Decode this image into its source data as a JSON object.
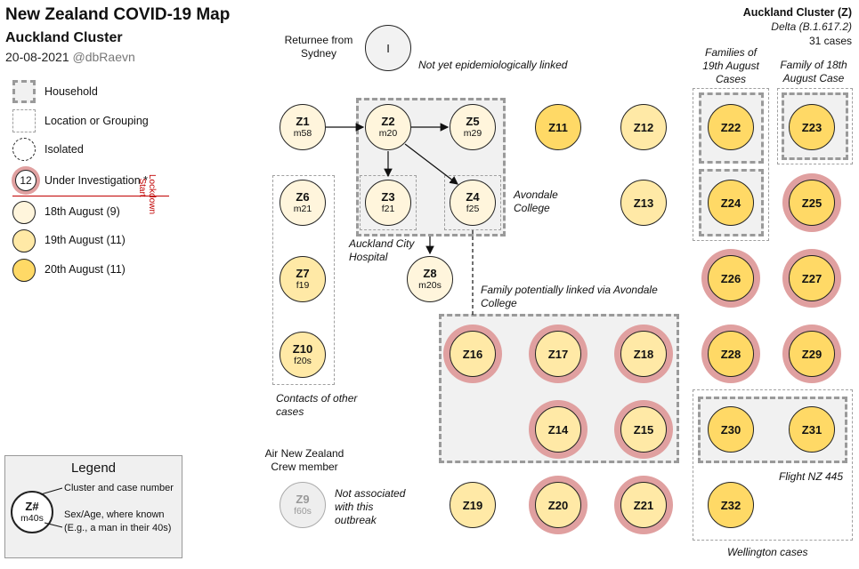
{
  "title": "New Zealand COVID-19 Map",
  "subtitle": "Auckland Cluster",
  "date": "20-08-2021",
  "handle": "@dbRaevn",
  "cluster": {
    "name": "Auckland Cluster (Z)",
    "variant": "Delta (B.1.617.2)",
    "cases": "31 cases"
  },
  "key": {
    "household": "Household",
    "location": "Location or Grouping",
    "isolated": "Isolated",
    "investigation_num": "12",
    "investigation": "Under Investigation *",
    "lockdown": "Lockdown Start",
    "aug18": "18th August (9)",
    "aug19": "19th August (11)",
    "aug20": "20th August (11)"
  },
  "colors": {
    "aug18": "#fff5dc",
    "aug19": "#ffe9a6",
    "aug20": "#ffd966",
    "investigation_ring": "#e0a0a0",
    "lockdown_line": "#c00000"
  },
  "labels": {
    "returnee": "Returnee from Sydney",
    "returnee_node": "I",
    "not_linked": "Not yet epidemiologically linked",
    "families19": "Families of 19th August Cases",
    "family18": "Family of 18th August Case",
    "avondale": "Avondale College",
    "hospital": "Auckland City Hospital",
    "family_linked": "Family potentially linked via Avondale College",
    "contacts": "Contacts of other cases",
    "air_nz": "Air New Zealand Crew member",
    "not_associated": "Not associated with this outbreak",
    "flight": "Flight NZ 445",
    "wellington": "Wellington cases"
  },
  "nodes": {
    "Z1": {
      "id": "Z1",
      "age": "m58"
    },
    "Z2": {
      "id": "Z2",
      "age": "m20"
    },
    "Z3": {
      "id": "Z3",
      "age": "f21"
    },
    "Z4": {
      "id": "Z4",
      "age": "f25"
    },
    "Z5": {
      "id": "Z5",
      "age": "m29"
    },
    "Z6": {
      "id": "Z6",
      "age": "m21"
    },
    "Z7": {
      "id": "Z7",
      "age": "f19"
    },
    "Z8": {
      "id": "Z8",
      "age": "m20s"
    },
    "Z9": {
      "id": "Z9",
      "age": "f60s"
    },
    "Z10": {
      "id": "Z10",
      "age": "f20s"
    },
    "Z11": {
      "id": "Z11"
    },
    "Z12": {
      "id": "Z12"
    },
    "Z13": {
      "id": "Z13"
    },
    "Z14": {
      "id": "Z14"
    },
    "Z15": {
      "id": "Z15"
    },
    "Z16": {
      "id": "Z16"
    },
    "Z17": {
      "id": "Z17"
    },
    "Z18": {
      "id": "Z18"
    },
    "Z19": {
      "id": "Z19"
    },
    "Z20": {
      "id": "Z20"
    },
    "Z21": {
      "id": "Z21"
    },
    "Z22": {
      "id": "Z22"
    },
    "Z23": {
      "id": "Z23"
    },
    "Z24": {
      "id": "Z24"
    },
    "Z25": {
      "id": "Z25"
    },
    "Z26": {
      "id": "Z26"
    },
    "Z27": {
      "id": "Z27"
    },
    "Z28": {
      "id": "Z28"
    },
    "Z29": {
      "id": "Z29"
    },
    "Z30": {
      "id": "Z30"
    },
    "Z31": {
      "id": "Z31"
    },
    "Z32": {
      "id": "Z32"
    }
  },
  "legend": {
    "title": "Legend",
    "node_id": "Z#",
    "node_age": "m40s",
    "cluster_case": "Cluster and case number",
    "sex_age": "Sex/Age, where known",
    "example": "(E.g., a man in their 40s)"
  }
}
